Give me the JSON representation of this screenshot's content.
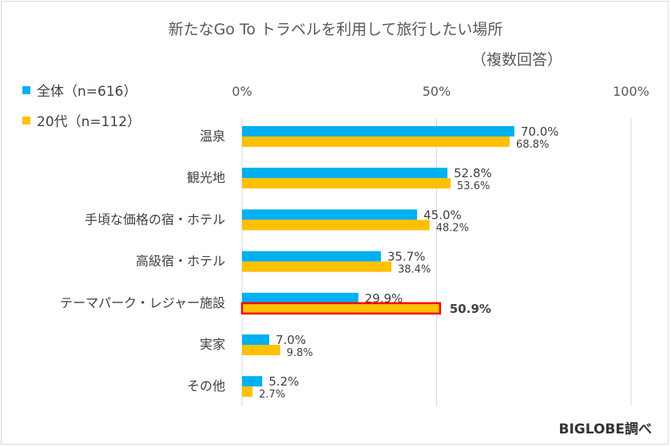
{
  "chart_data": {
    "type": "bar",
    "orientation": "horizontal",
    "title": "新たなGo To トラベルを利用して旅行したい場所",
    "subtitle": "（複数回答）",
    "xlabel": "",
    "ylabel": "",
    "xlim": [
      0,
      100
    ],
    "x_ticks": [
      "0%",
      "50%",
      "100%"
    ],
    "grid": true,
    "legend_position": "top-left",
    "categories": [
      "温泉",
      "観光地",
      "手頃な価格の宿・ホテル",
      "高級宿・ホテル",
      "テーマパーク・レジャー施設",
      "実家",
      "その他"
    ],
    "series": [
      {
        "name": "全体（n=616）",
        "color": "#00b0f0",
        "values": [
          70.0,
          52.8,
          45.0,
          35.7,
          29.9,
          7.0,
          5.2
        ],
        "labels": [
          "70.0%",
          "52.8%",
          "45.0%",
          "35.7%",
          "29.9%",
          "7.0%",
          "5.2%"
        ]
      },
      {
        "name": "20代（n=112）",
        "color": "#ffc000",
        "values": [
          68.8,
          53.6,
          48.2,
          38.4,
          50.9,
          9.8,
          2.7
        ],
        "labels": [
          "68.8%",
          "53.6%",
          "48.2%",
          "38.4%",
          "50.9%",
          "9.8%",
          "2.7%"
        ]
      }
    ],
    "highlight": {
      "series": 1,
      "category": 4,
      "outline_color": "#ff0000"
    }
  },
  "footer": {
    "brand": "BIGLOBE調べ"
  }
}
